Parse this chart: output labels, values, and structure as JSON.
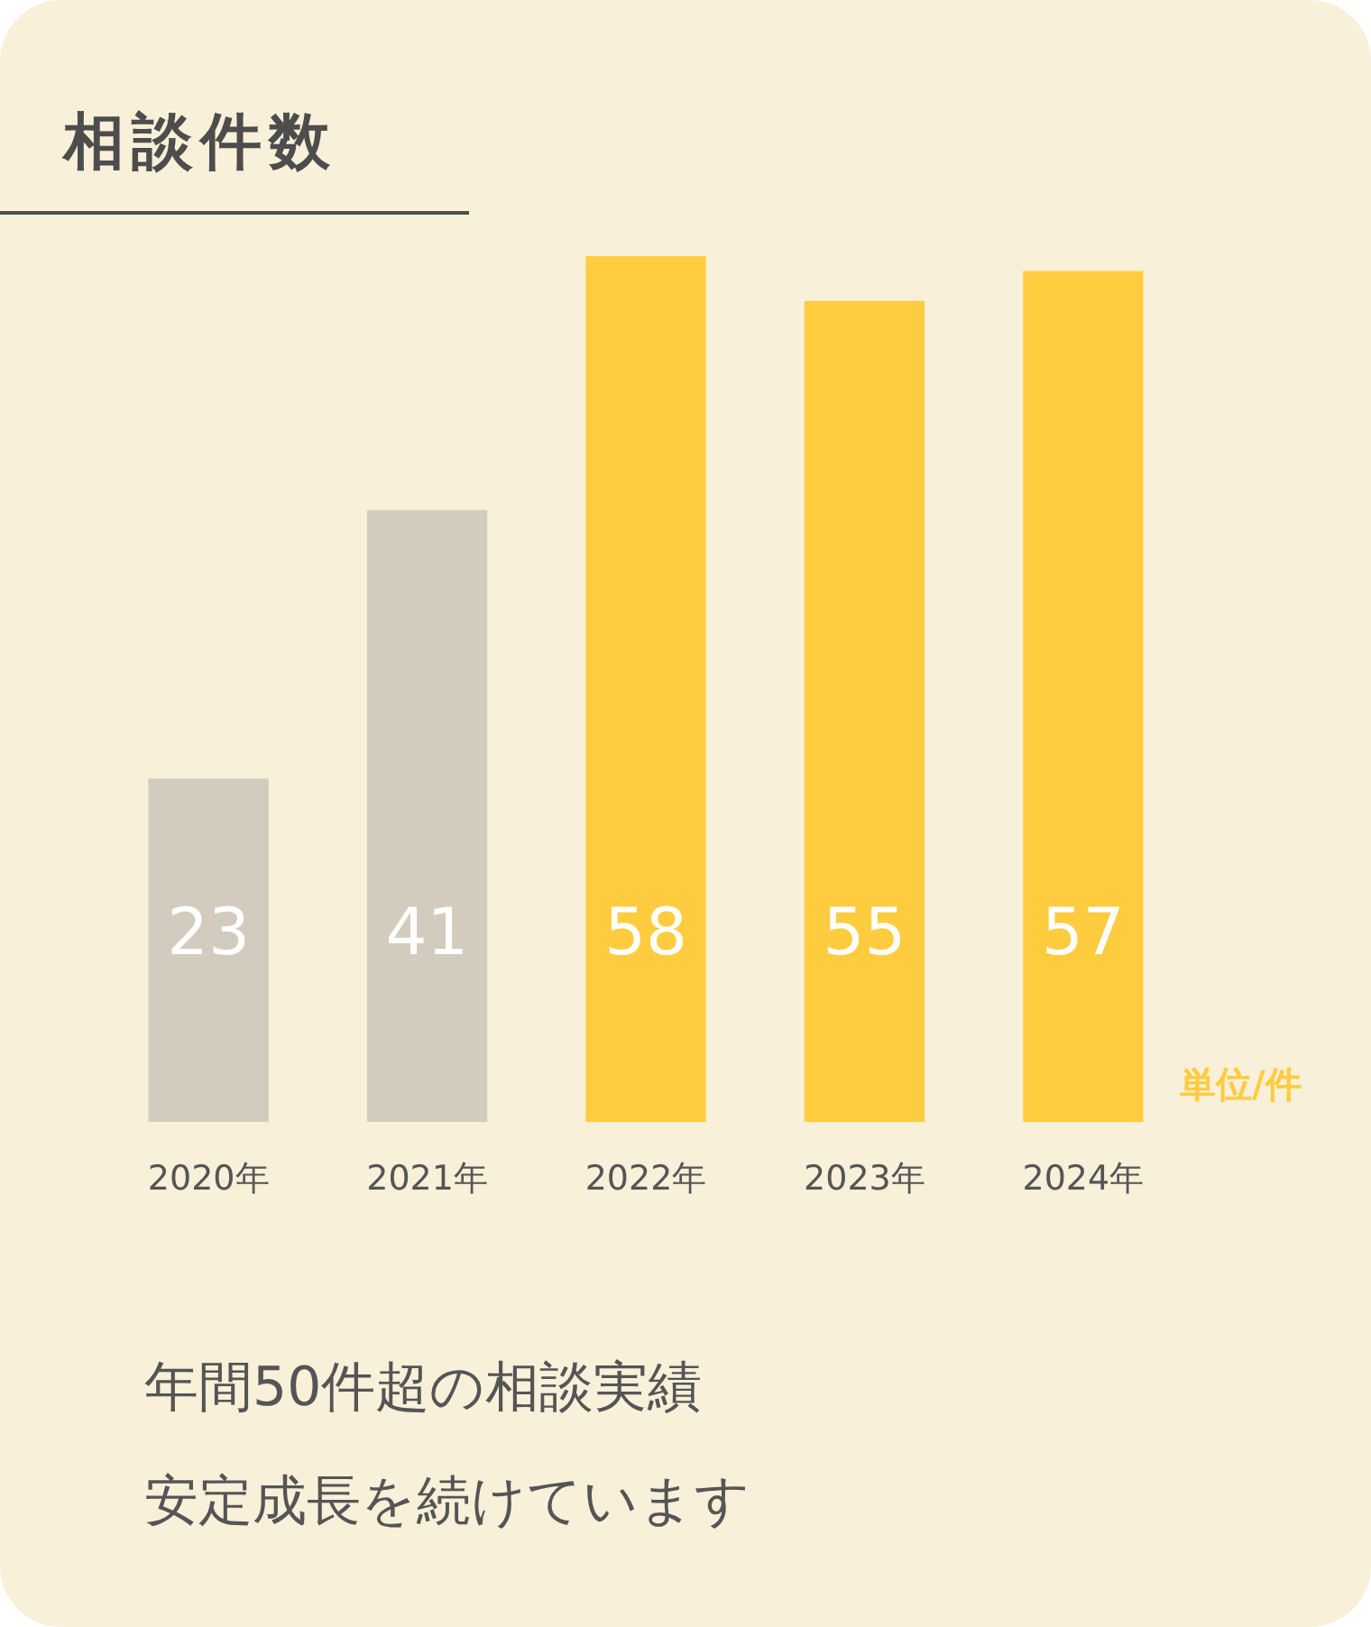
{
  "chart_data": {
    "type": "bar",
    "title": "相談件数",
    "categories": [
      "2020年",
      "2021年",
      "2022年",
      "2023年",
      "2024年"
    ],
    "values": [
      23,
      41,
      58,
      55,
      57
    ],
    "colors": [
      "#d3cbbd",
      "#d3cbbd",
      "#ffcc40",
      "#ffcc40",
      "#ffcc40"
    ],
    "data_labels": true,
    "annotations": [
      "単位/件",
      "年間50件超の相談実績",
      "安定成長を続けています"
    ]
  }
}
